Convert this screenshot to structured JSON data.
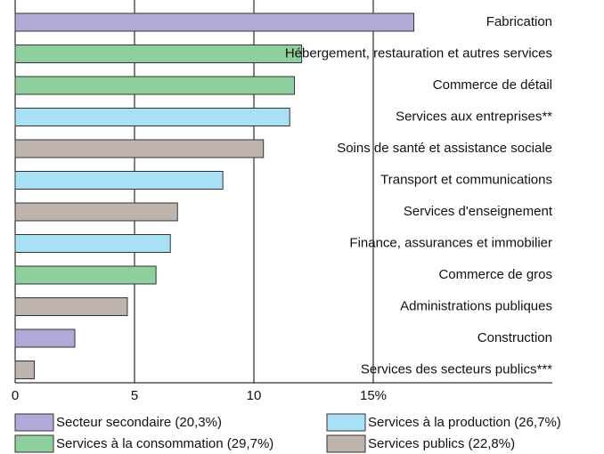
{
  "chart_data": {
    "type": "barh",
    "categories": [
      "Fabrication",
      "Hébergement, restauration et autres services",
      "Commerce de détail",
      "Services aux entreprises**",
      "Soins de santé et assistance sociale",
      "Transport et communications",
      "Services d'enseignement",
      "Finance, assurances et immobilier",
      "Commerce de gros",
      "Administrations publiques",
      "Construction",
      "Services des secteurs publics***"
    ],
    "values": [
      16.7,
      12.0,
      11.7,
      11.5,
      10.4,
      8.7,
      6.8,
      6.5,
      5.9,
      4.7,
      2.5,
      0.8
    ],
    "colors": [
      "#b3a9d9",
      "#8fcf9e",
      "#8fcf9e",
      "#a8e0f5",
      "#bfb3ae",
      "#a8e0f5",
      "#bfb3ae",
      "#a8e0f5",
      "#8fcf9e",
      "#bfb3ae",
      "#b3a9d9",
      "#bfb3ae"
    ],
    "xlim": [
      0,
      22.5
    ],
    "xticks": [
      0,
      5,
      10,
      {
        "value": 15,
        "label": "15%"
      }
    ],
    "grid": true,
    "legend": [
      {
        "name": "Secteur secondaire (20,3%)",
        "color": "#b3a9d9"
      },
      {
        "name": "Services à la production (26,7%)",
        "color": "#a8e0f5"
      },
      {
        "name": "Services à la consommation (29,7%)",
        "color": "#8fcf9e"
      },
      {
        "name": "Services publics (22,8%)",
        "color": "#bfb3ae"
      }
    ]
  }
}
